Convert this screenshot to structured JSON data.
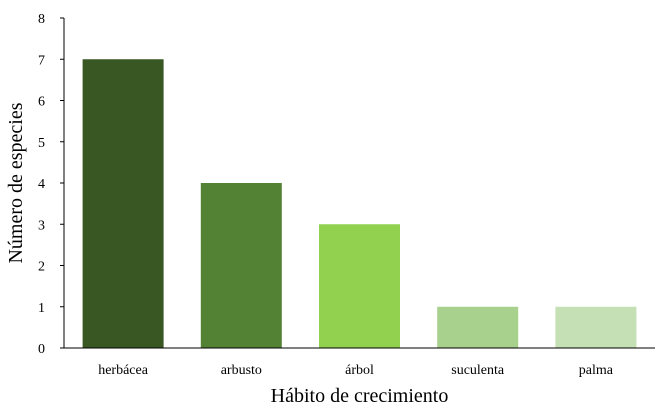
{
  "chart_data": {
    "type": "bar",
    "title": "",
    "xlabel": "Hábito de crecimiento",
    "ylabel": "Número de especies",
    "categories": [
      "herbácea",
      "arbusto",
      "árbol",
      "suculenta",
      "palma"
    ],
    "values": [
      7,
      4,
      3,
      1,
      1
    ],
    "colors": [
      "#385723",
      "#548235",
      "#92D050",
      "#A9D18E",
      "#C5E0B4"
    ],
    "ylim": [
      0,
      8
    ],
    "yticks": [
      0,
      1,
      2,
      3,
      4,
      5,
      6,
      7,
      8
    ],
    "grid": false,
    "legend": "none"
  }
}
